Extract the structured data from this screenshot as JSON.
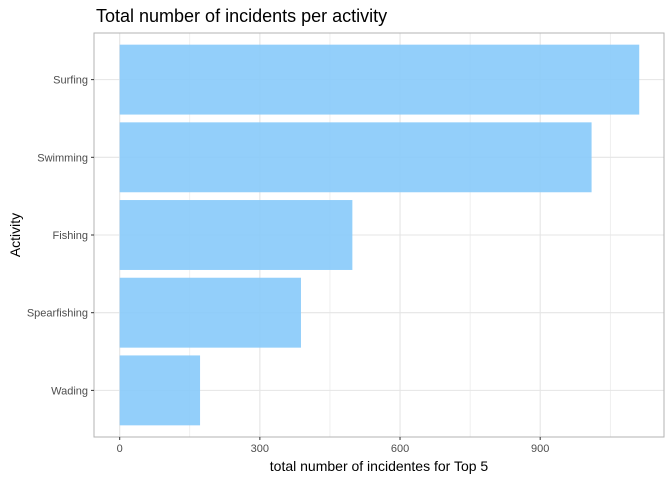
{
  "chart_data": {
    "type": "bar",
    "orientation": "horizontal",
    "title": "Total number of incidents per activity",
    "xlabel": "total number of incidentes for Top 5",
    "ylabel": "Activity",
    "categories": [
      "Surfing",
      "Swimming",
      "Fishing",
      "Spearfishing",
      "Wading"
    ],
    "values": [
      1112,
      1010,
      498,
      388,
      172
    ],
    "xlim": [
      -55,
      1165
    ],
    "xticks": [
      0,
      300,
      600,
      900
    ],
    "x_minor_ticks": [
      150,
      450,
      750,
      1050
    ],
    "grid": true,
    "bar_color": "#87CAF9",
    "panel_border_color": "#B3B3B3",
    "grid_color": "#E5E5E5"
  }
}
